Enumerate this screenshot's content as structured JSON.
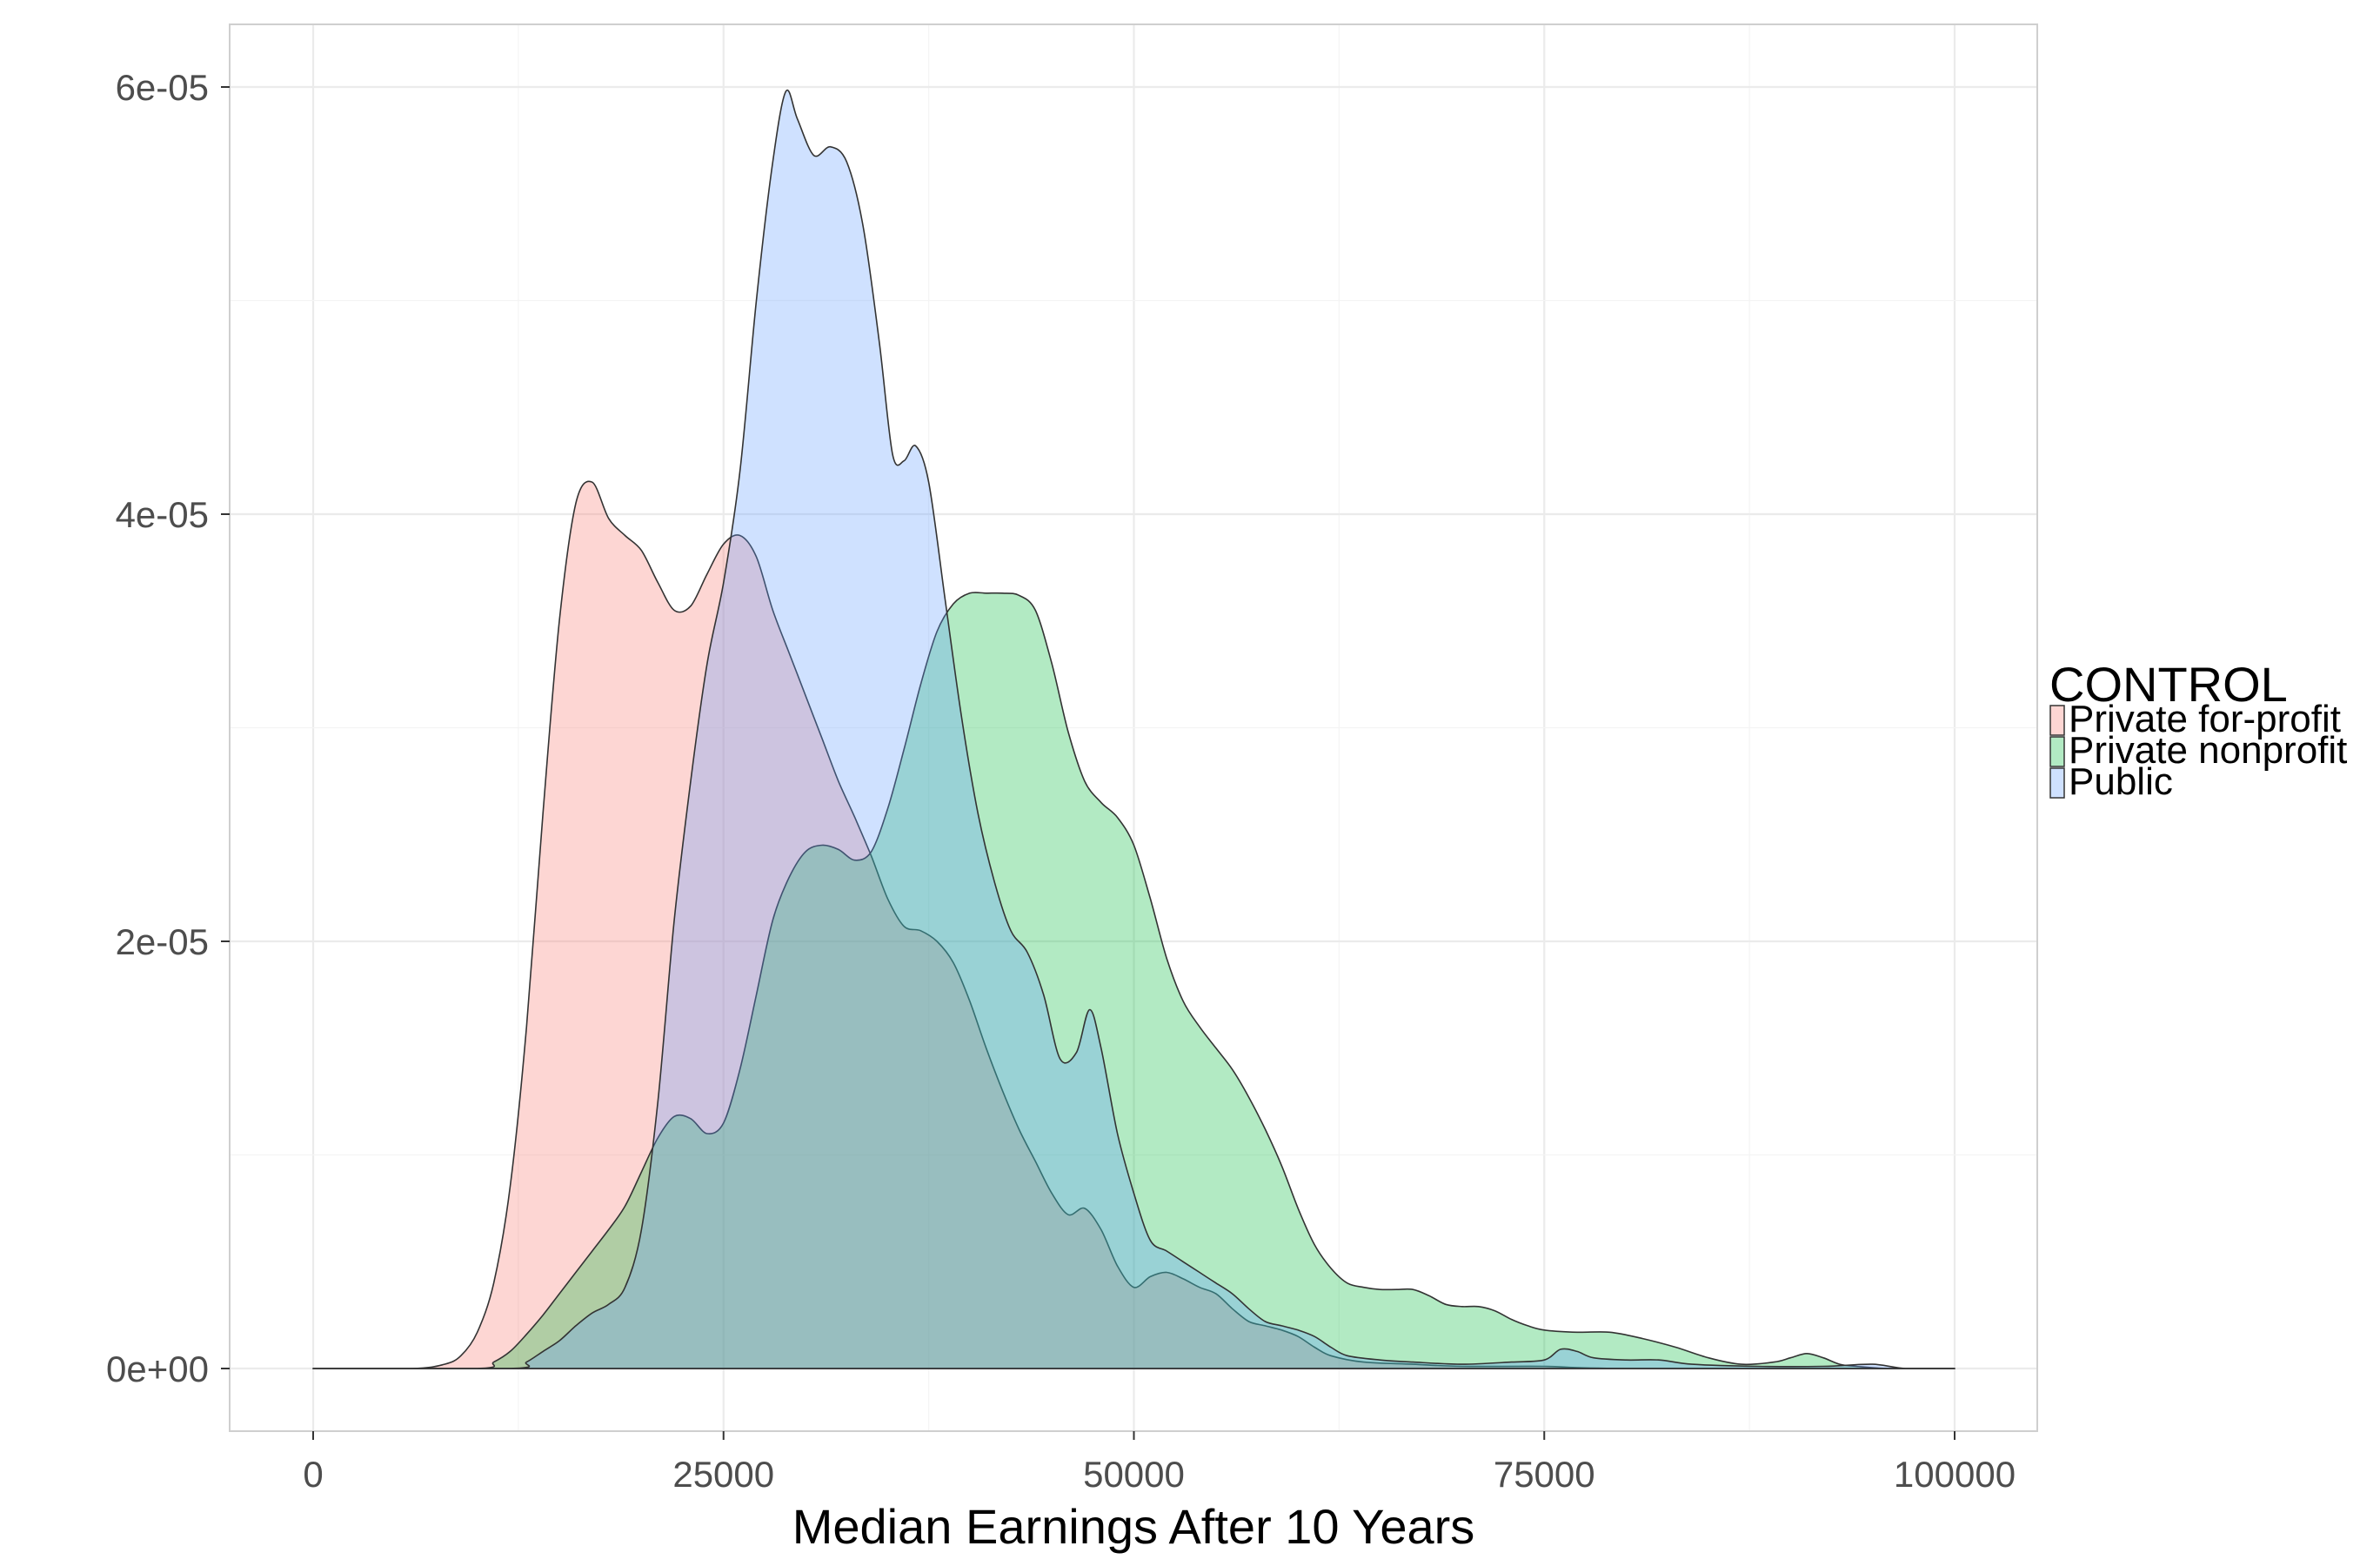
{
  "chart_data": {
    "type": "area",
    "subtype": "density",
    "title": "",
    "xlabel": "Median Earnings After 10 Years",
    "ylabel": "",
    "xlim": [
      0,
      100000
    ],
    "ylim": [
      0,
      6e-05
    ],
    "x_ticks": [
      0,
      25000,
      50000,
      75000,
      100000
    ],
    "x_tick_labels": [
      "0",
      "25000",
      "50000",
      "75000",
      "100000"
    ],
    "y_ticks": [
      0,
      2e-05,
      4e-05,
      6e-05
    ],
    "y_tick_labels": [
      "0e+00",
      "2e-05",
      "4e-05",
      "6e-05"
    ],
    "grid": true,
    "legend": {
      "title": "CONTROL",
      "placement": "right"
    },
    "series": [
      {
        "name": "Private for-profit",
        "color": "#F8766D",
        "points": [
          [
            0,
            0
          ],
          [
            6000,
            0
          ],
          [
            8000,
            2e-07
          ],
          [
            9000,
            6e-07
          ],
          [
            10000,
            1.7e-06
          ],
          [
            11000,
            4e-06
          ],
          [
            12000,
            8.5e-06
          ],
          [
            13000,
            1.6e-05
          ],
          [
            14000,
            2.6e-05
          ],
          [
            15000,
            3.5e-05
          ],
          [
            16000,
            4.05e-05
          ],
          [
            17000,
            4.15e-05
          ],
          [
            18000,
            3.98e-05
          ],
          [
            19000,
            3.9e-05
          ],
          [
            20000,
            3.83e-05
          ],
          [
            21000,
            3.68e-05
          ],
          [
            22000,
            3.55e-05
          ],
          [
            23000,
            3.57e-05
          ],
          [
            24000,
            3.72e-05
          ],
          [
            25000,
            3.86e-05
          ],
          [
            26000,
            3.9e-05
          ],
          [
            27000,
            3.8e-05
          ],
          [
            28000,
            3.55e-05
          ],
          [
            29000,
            3.35e-05
          ],
          [
            30000,
            3.15e-05
          ],
          [
            31000,
            2.95e-05
          ],
          [
            32000,
            2.75e-05
          ],
          [
            33000,
            2.58e-05
          ],
          [
            34000,
            2.4e-05
          ],
          [
            35000,
            2.2e-05
          ],
          [
            36000,
            2.07e-05
          ],
          [
            37000,
            2.05e-05
          ],
          [
            38000,
            2e-05
          ],
          [
            39000,
            1.9e-05
          ],
          [
            40000,
            1.72e-05
          ],
          [
            41000,
            1.5e-05
          ],
          [
            42000,
            1.3e-05
          ],
          [
            43000,
            1.12e-05
          ],
          [
            44000,
            9.7e-06
          ],
          [
            45000,
            8.2e-06
          ],
          [
            46000,
            7.2e-06
          ],
          [
            47000,
            7.5e-06
          ],
          [
            48000,
            6.5e-06
          ],
          [
            49000,
            4.8e-06
          ],
          [
            50000,
            3.8e-06
          ],
          [
            51000,
            4.3e-06
          ],
          [
            52000,
            4.5e-06
          ],
          [
            53000,
            4.2e-06
          ],
          [
            54000,
            3.8e-06
          ],
          [
            55000,
            3.5e-06
          ],
          [
            56000,
            2.8e-06
          ],
          [
            57000,
            2.2e-06
          ],
          [
            58000,
            2e-06
          ],
          [
            59000,
            1.8e-06
          ],
          [
            60000,
            1.5e-06
          ],
          [
            61000,
            1e-06
          ],
          [
            62000,
            6e-07
          ],
          [
            64000,
            3e-07
          ],
          [
            67000,
            2e-07
          ],
          [
            70000,
            1e-07
          ],
          [
            75000,
            1e-07
          ],
          [
            80000,
            0
          ],
          [
            100000,
            0
          ]
        ]
      },
      {
        "name": "Private nonprofit",
        "color": "#00BA38",
        "points": [
          [
            0,
            0
          ],
          [
            10000,
            0
          ],
          [
            11000,
            3e-07
          ],
          [
            12000,
            8e-07
          ],
          [
            13000,
            1.6e-06
          ],
          [
            14000,
            2.5e-06
          ],
          [
            15000,
            3.5e-06
          ],
          [
            16000,
            4.5e-06
          ],
          [
            17000,
            5.5e-06
          ],
          [
            18000,
            6.5e-06
          ],
          [
            19000,
            7.6e-06
          ],
          [
            20000,
            9.2e-06
          ],
          [
            21000,
            1.08e-05
          ],
          [
            22000,
            1.18e-05
          ],
          [
            23000,
            1.17e-05
          ],
          [
            24000,
            1.1e-05
          ],
          [
            25000,
            1.15e-05
          ],
          [
            26000,
            1.4e-05
          ],
          [
            27000,
            1.75e-05
          ],
          [
            28000,
            2.1e-05
          ],
          [
            29000,
            2.3e-05
          ],
          [
            30000,
            2.42e-05
          ],
          [
            31000,
            2.45e-05
          ],
          [
            32000,
            2.43e-05
          ],
          [
            33000,
            2.38e-05
          ],
          [
            34000,
            2.42e-05
          ],
          [
            35000,
            2.62e-05
          ],
          [
            36000,
            2.9e-05
          ],
          [
            37000,
            3.2e-05
          ],
          [
            38000,
            3.45e-05
          ],
          [
            39000,
            3.58e-05
          ],
          [
            40000,
            3.63e-05
          ],
          [
            41000,
            3.63e-05
          ],
          [
            42000,
            3.63e-05
          ],
          [
            43000,
            3.62e-05
          ],
          [
            44000,
            3.55e-05
          ],
          [
            45000,
            3.3e-05
          ],
          [
            46000,
            2.98e-05
          ],
          [
            47000,
            2.75e-05
          ],
          [
            48000,
            2.65e-05
          ],
          [
            49000,
            2.58e-05
          ],
          [
            50000,
            2.45e-05
          ],
          [
            51000,
            2.2e-05
          ],
          [
            52000,
            1.92e-05
          ],
          [
            53000,
            1.72e-05
          ],
          [
            54000,
            1.6e-05
          ],
          [
            55000,
            1.5e-05
          ],
          [
            56000,
            1.4e-05
          ],
          [
            57000,
            1.27e-05
          ],
          [
            58000,
            1.12e-05
          ],
          [
            59000,
            9.5e-06
          ],
          [
            60000,
            7.5e-06
          ],
          [
            61000,
            5.8e-06
          ],
          [
            62000,
            4.7e-06
          ],
          [
            63000,
            4e-06
          ],
          [
            64000,
            3.8e-06
          ],
          [
            65000,
            3.7e-06
          ],
          [
            66000,
            3.7e-06
          ],
          [
            67000,
            3.7e-06
          ],
          [
            68000,
            3.4e-06
          ],
          [
            69000,
            3e-06
          ],
          [
            70000,
            2.9e-06
          ],
          [
            71000,
            2.9e-06
          ],
          [
            72000,
            2.7e-06
          ],
          [
            73000,
            2.3e-06
          ],
          [
            74000,
            2e-06
          ],
          [
            75000,
            1.8e-06
          ],
          [
            77000,
            1.7e-06
          ],
          [
            79000,
            1.7e-06
          ],
          [
            81000,
            1.4e-06
          ],
          [
            83000,
            1e-06
          ],
          [
            85000,
            5e-07
          ],
          [
            87000,
            2e-07
          ],
          [
            89000,
            3e-07
          ],
          [
            90000,
            5e-07
          ],
          [
            91000,
            7e-07
          ],
          [
            92000,
            5e-07
          ],
          [
            93000,
            2e-07
          ],
          [
            94000,
            1e-07
          ],
          [
            96000,
            0
          ],
          [
            100000,
            0
          ]
        ]
      },
      {
        "name": "Public",
        "color": "#619CFF",
        "points": [
          [
            0,
            0
          ],
          [
            12000,
            0
          ],
          [
            13000,
            3e-07
          ],
          [
            14000,
            8e-07
          ],
          [
            15000,
            1.3e-06
          ],
          [
            16000,
            2e-06
          ],
          [
            17000,
            2.6e-06
          ],
          [
            18000,
            3e-06
          ],
          [
            19000,
            3.8e-06
          ],
          [
            20000,
            6.5e-06
          ],
          [
            21000,
            1.25e-05
          ],
          [
            22000,
            2.1e-05
          ],
          [
            23000,
            2.75e-05
          ],
          [
            24000,
            3.3e-05
          ],
          [
            25000,
            3.68e-05
          ],
          [
            26000,
            4.2e-05
          ],
          [
            27000,
            5e-05
          ],
          [
            28000,
            5.65e-05
          ],
          [
            28800,
            5.98e-05
          ],
          [
            29500,
            5.85e-05
          ],
          [
            30500,
            5.68e-05
          ],
          [
            31500,
            5.72e-05
          ],
          [
            32500,
            5.65e-05
          ],
          [
            33500,
            5.35e-05
          ],
          [
            34500,
            4.8e-05
          ],
          [
            35300,
            4.28e-05
          ],
          [
            36000,
            4.25e-05
          ],
          [
            36700,
            4.32e-05
          ],
          [
            37500,
            4.15e-05
          ],
          [
            38500,
            3.6e-05
          ],
          [
            39500,
            3.05e-05
          ],
          [
            40500,
            2.6e-05
          ],
          [
            41500,
            2.28e-05
          ],
          [
            42500,
            2.05e-05
          ],
          [
            43500,
            1.95e-05
          ],
          [
            44500,
            1.75e-05
          ],
          [
            45500,
            1.45e-05
          ],
          [
            46500,
            1.48e-05
          ],
          [
            47300,
            1.68e-05
          ],
          [
            48000,
            1.5e-05
          ],
          [
            49000,
            1.1e-05
          ],
          [
            50000,
            8.2e-06
          ],
          [
            51000,
            6e-06
          ],
          [
            52000,
            5.5e-06
          ],
          [
            53000,
            5e-06
          ],
          [
            54000,
            4.5e-06
          ],
          [
            55000,
            4e-06
          ],
          [
            56000,
            3.5e-06
          ],
          [
            57000,
            2.8e-06
          ],
          [
            58000,
            2.2e-06
          ],
          [
            59000,
            2e-06
          ],
          [
            60000,
            1.8e-06
          ],
          [
            61000,
            1.5e-06
          ],
          [
            62000,
            1e-06
          ],
          [
            63000,
            6e-07
          ],
          [
            65000,
            4e-07
          ],
          [
            67000,
            3e-07
          ],
          [
            70000,
            2e-07
          ],
          [
            73000,
            3e-07
          ],
          [
            75000,
            4e-07
          ],
          [
            76000,
            9e-07
          ],
          [
            77000,
            8e-07
          ],
          [
            78000,
            5e-07
          ],
          [
            80000,
            4e-07
          ],
          [
            82000,
            4e-07
          ],
          [
            84000,
            2e-07
          ],
          [
            88000,
            1e-07
          ],
          [
            92000,
            1e-07
          ],
          [
            95000,
            2e-07
          ],
          [
            97000,
            0
          ],
          [
            100000,
            0
          ]
        ]
      }
    ]
  }
}
